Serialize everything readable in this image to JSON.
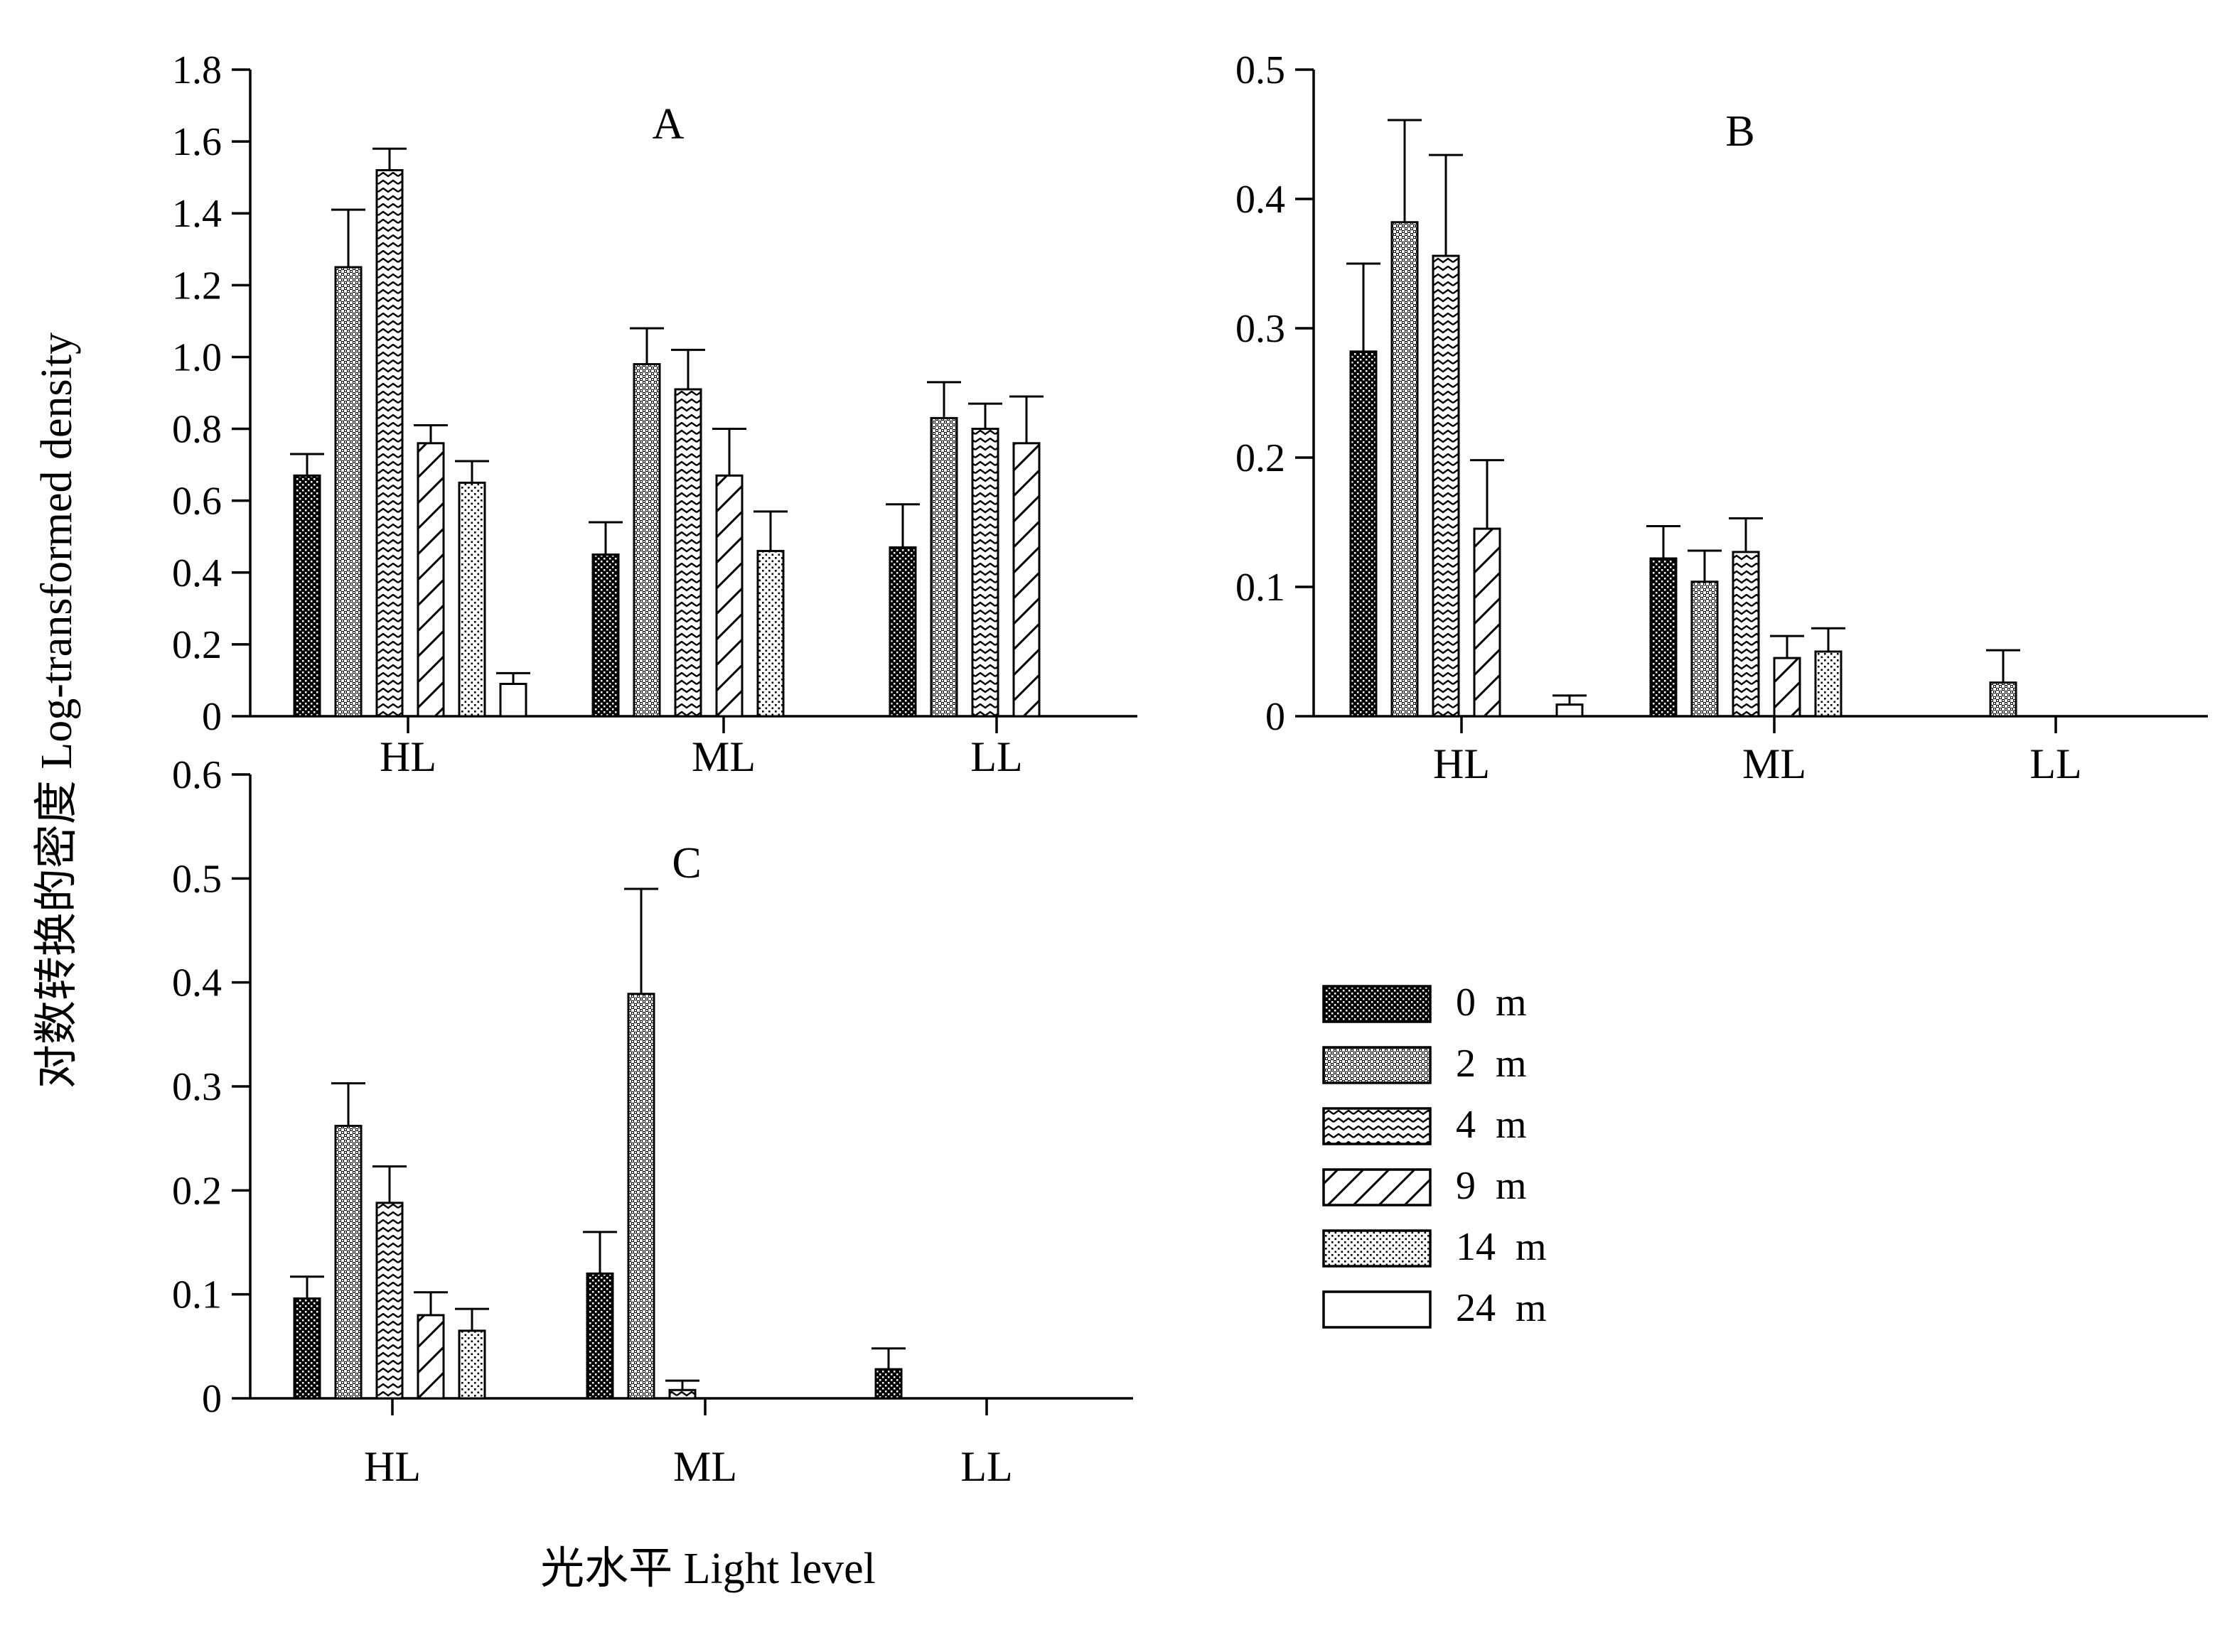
{
  "y_axis_title": "对数转换的密度 Log-transformed density",
  "x_axis_title": "光水平 Light level",
  "legend": [
    {
      "label": "0 m",
      "pattern": "dots-dark"
    },
    {
      "label": "2 m",
      "pattern": "grid"
    },
    {
      "label": "4 m",
      "pattern": "zigzag"
    },
    {
      "label": "9 m",
      "pattern": "diagonal"
    },
    {
      "label": "14 m",
      "pattern": "dots-light"
    },
    {
      "label": "24 m",
      "pattern": "empty"
    }
  ],
  "colors": {
    "ink": "#000000",
    "background": "#ffffff"
  },
  "chart_data": [
    {
      "panel": "A",
      "type": "bar",
      "categories": [
        "HL",
        "ML",
        "LL"
      ],
      "y_ticks": [
        "0",
        "0.2",
        "0.4",
        "0.6",
        "0.8",
        "1.0",
        "1.2",
        "1.4",
        "1.6",
        "1.8"
      ],
      "ylim": [
        0,
        1.8
      ],
      "series": [
        {
          "name": "0 m",
          "values": [
            0.67,
            0.45,
            0.47
          ],
          "errors": [
            0.06,
            0.09,
            0.12
          ]
        },
        {
          "name": "2 m",
          "values": [
            1.25,
            0.98,
            0.83
          ],
          "errors": [
            0.16,
            0.1,
            0.1
          ]
        },
        {
          "name": "4 m",
          "values": [
            1.52,
            0.91,
            0.8
          ],
          "errors": [
            0.06,
            0.11,
            0.07
          ]
        },
        {
          "name": "9 m",
          "values": [
            0.76,
            0.67,
            0.76
          ],
          "errors": [
            0.05,
            0.13,
            0.13
          ]
        },
        {
          "name": "14 m",
          "values": [
            0.65,
            0.46,
            null
          ],
          "errors": [
            0.06,
            0.11,
            null
          ]
        },
        {
          "name": "24 m",
          "values": [
            0.09,
            null,
            null
          ],
          "errors": [
            0.03,
            null,
            null
          ]
        }
      ]
    },
    {
      "panel": "B",
      "type": "bar",
      "categories": [
        "HL",
        "ML",
        "LL"
      ],
      "y_ticks": [
        "0",
        "0.1",
        "0.2",
        "0.3",
        "0.4",
        "0.5"
      ],
      "ylim": [
        0,
        0.5
      ],
      "series": [
        {
          "name": "0 m",
          "values": [
            0.282,
            0.122,
            null
          ],
          "errors": [
            0.068,
            0.025,
            null
          ]
        },
        {
          "name": "2 m",
          "values": [
            0.382,
            0.104,
            0.026
          ],
          "errors": [
            0.079,
            0.024,
            0.025
          ]
        },
        {
          "name": "4 m",
          "values": [
            0.356,
            0.127,
            null
          ],
          "errors": [
            0.078,
            0.026,
            null
          ]
        },
        {
          "name": "9 m",
          "values": [
            0.145,
            0.045,
            null
          ],
          "errors": [
            0.053,
            0.017,
            null
          ]
        },
        {
          "name": "14 m",
          "values": [
            null,
            0.05,
            null
          ],
          "errors": [
            null,
            0.018,
            null
          ]
        },
        {
          "name": "24 m",
          "values": [
            0.009,
            null,
            null
          ],
          "errors": [
            0.007,
            null,
            null
          ]
        }
      ]
    },
    {
      "panel": "C",
      "type": "bar",
      "categories": [
        "HL",
        "ML",
        "LL"
      ],
      "y_ticks": [
        "0",
        "0.1",
        "0.2",
        "0.3",
        "0.4",
        "0.5",
        "0.6"
      ],
      "ylim": [
        0,
        0.6
      ],
      "series": [
        {
          "name": "0 m",
          "values": [
            0.096,
            0.12,
            0.028
          ],
          "errors": [
            0.021,
            0.04,
            0.02
          ]
        },
        {
          "name": "2 m",
          "values": [
            0.262,
            0.389,
            null
          ],
          "errors": [
            0.041,
            0.101,
            null
          ]
        },
        {
          "name": "4 m",
          "values": [
            0.188,
            0.008,
            null
          ],
          "errors": [
            0.035,
            0.009,
            null
          ]
        },
        {
          "name": "9 m",
          "values": [
            0.08,
            null,
            null
          ],
          "errors": [
            0.022,
            null,
            null
          ]
        },
        {
          "name": "14 m",
          "values": [
            0.065,
            null,
            null
          ],
          "errors": [
            0.021,
            null,
            null
          ]
        },
        {
          "name": "24 m",
          "values": [
            null,
            null,
            null
          ],
          "errors": [
            null,
            null,
            null
          ]
        }
      ]
    }
  ]
}
